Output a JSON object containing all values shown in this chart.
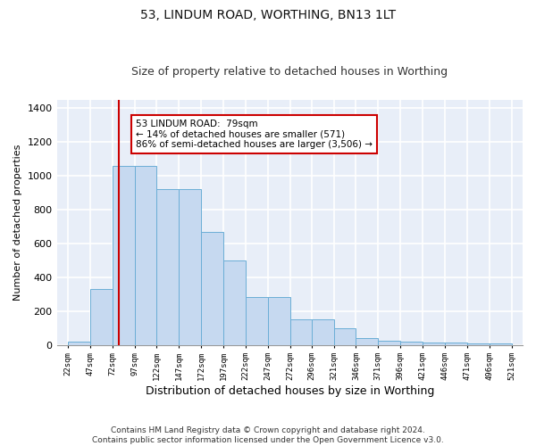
{
  "title": "53, LINDUM ROAD, WORTHING, BN13 1LT",
  "subtitle": "Size of property relative to detached houses in Worthing",
  "xlabel": "Distribution of detached houses by size in Worthing",
  "ylabel": "Number of detached properties",
  "bar_color": "#c6d9f0",
  "bar_edge_color": "#6baed6",
  "bg_color": "#e8eef8",
  "grid_color": "#ffffff",
  "red_line_x": 79,
  "annotation_text": "53 LINDUM ROAD:  79sqm\n← 14% of detached houses are smaller (571)\n86% of semi-detached houses are larger (3,506) →",
  "annotation_box_color": "#ffffff",
  "annotation_box_edge": "#cc0000",
  "bins": [
    22,
    47,
    72,
    97,
    122,
    147,
    172,
    197,
    222,
    247,
    272,
    296,
    321,
    346,
    371,
    396,
    421,
    446,
    471,
    496,
    521
  ],
  "counts": [
    20,
    330,
    1060,
    1060,
    920,
    920,
    670,
    500,
    280,
    280,
    150,
    150,
    100,
    40,
    25,
    20,
    15,
    15,
    10,
    10
  ],
  "ylim": [
    0,
    1450
  ],
  "yticks": [
    0,
    200,
    400,
    600,
    800,
    1000,
    1200,
    1400
  ],
  "footer": "Contains HM Land Registry data © Crown copyright and database right 2024.\nContains public sector information licensed under the Open Government Licence v3.0.",
  "title_fontsize": 10,
  "subtitle_fontsize": 9
}
